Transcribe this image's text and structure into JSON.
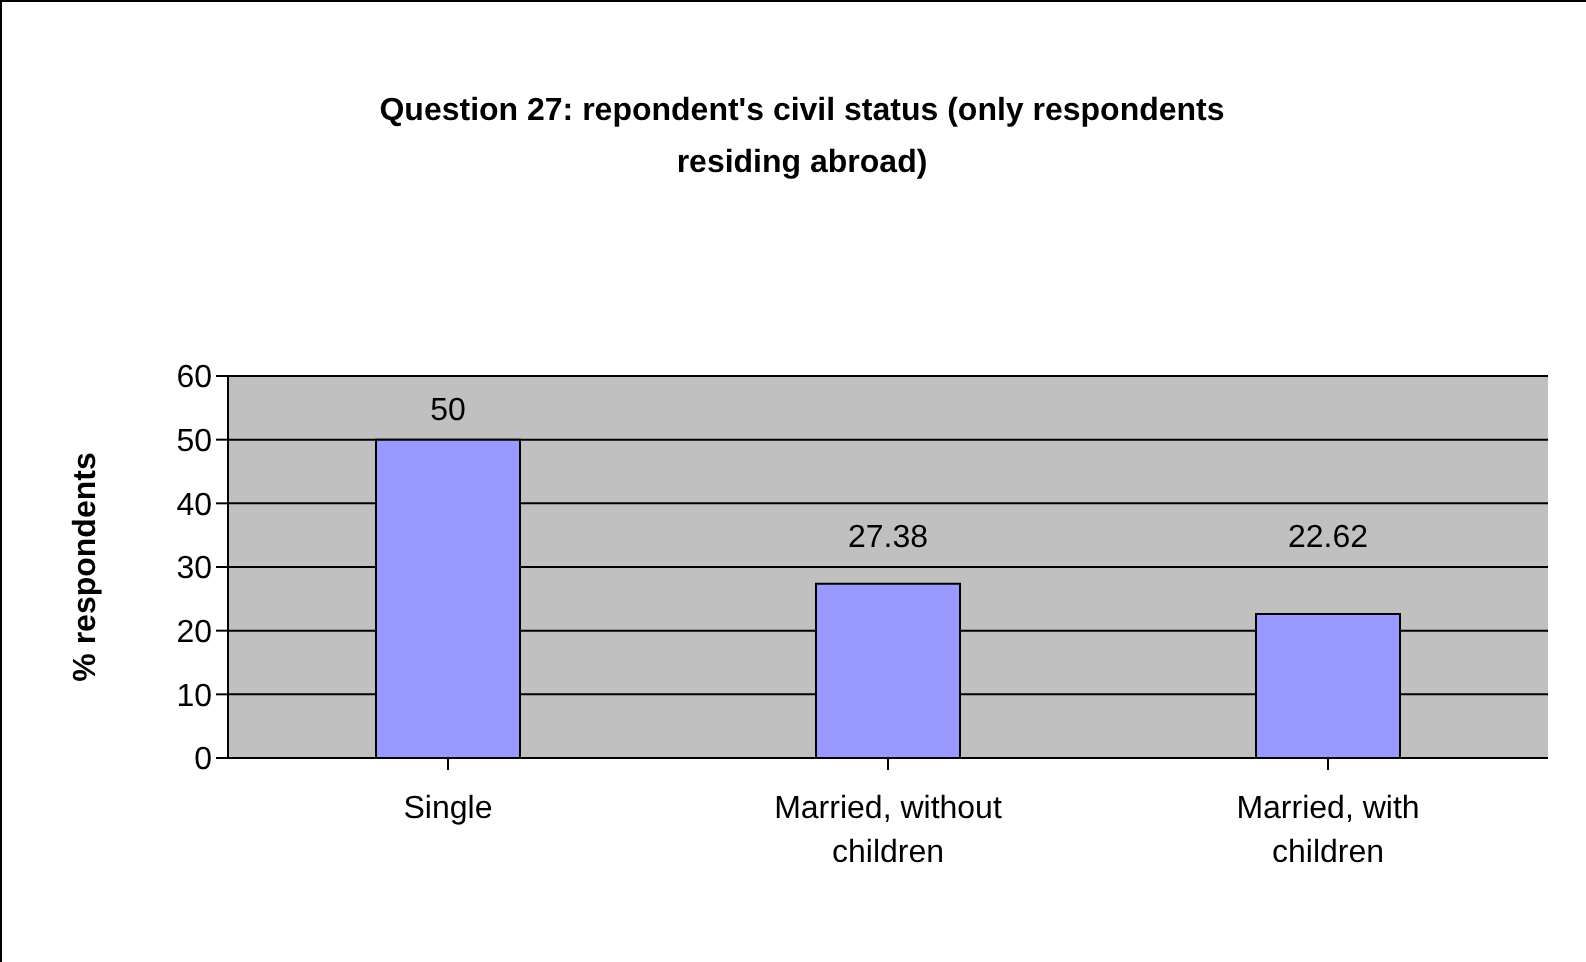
{
  "chart_data": {
    "type": "bar",
    "title": "Question 27: repondent's civil status (only respondents residing abroad)",
    "ylabel": "% respondents",
    "categories": [
      "Single",
      "Married, without children",
      "Married, with children"
    ],
    "values": [
      50,
      27.38,
      22.62
    ],
    "color": "#9999ff",
    "ylim": [
      0,
      60
    ],
    "yticks": [
      0,
      10,
      20,
      30,
      40,
      50,
      60
    ],
    "grid": "y",
    "data_labels": true
  }
}
